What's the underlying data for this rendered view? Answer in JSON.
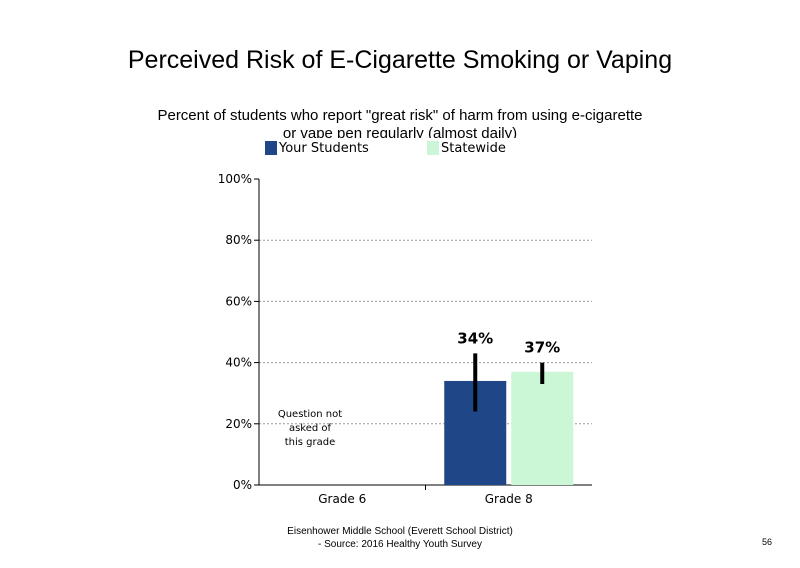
{
  "title": "Perceived Risk of E-Cigarette Smoking or Vaping",
  "subtitle": "Percent of students who report \"great risk\" of harm from using e-cigarette or vape pen regularly (almost daily)",
  "colors": {
    "your_students": "#1f4788",
    "statewide": "#ccf7d6",
    "error_bar": "#000000"
  },
  "chart_data": {
    "type": "bar",
    "categories": [
      "Grade 6",
      "Grade 8"
    ],
    "series": [
      {
        "name": "Your Students",
        "values": [
          null,
          34
        ],
        "error_low": [
          null,
          24
        ],
        "error_high": [
          null,
          43
        ],
        "labels": [
          "",
          "34%"
        ]
      },
      {
        "name": "Statewide",
        "values": [
          null,
          37
        ],
        "error_low": [
          null,
          33
        ],
        "error_high": [
          null,
          40
        ],
        "labels": [
          "",
          "37%"
        ]
      }
    ],
    "ylim": [
      0,
      100
    ],
    "yticks": [
      "0%",
      "20%",
      "40%",
      "60%",
      "80%",
      "100%"
    ],
    "grid": true,
    "legend": "top",
    "annotations": [
      {
        "category": "Grade 6",
        "lines": [
          "Question not",
          "asked of",
          "this grade"
        ]
      }
    ]
  },
  "footer": {
    "line1": "Eisenhower Middle School (Everett School District)",
    "line2": "- Source: 2016 Healthy Youth Survey"
  },
  "page_number": "56"
}
